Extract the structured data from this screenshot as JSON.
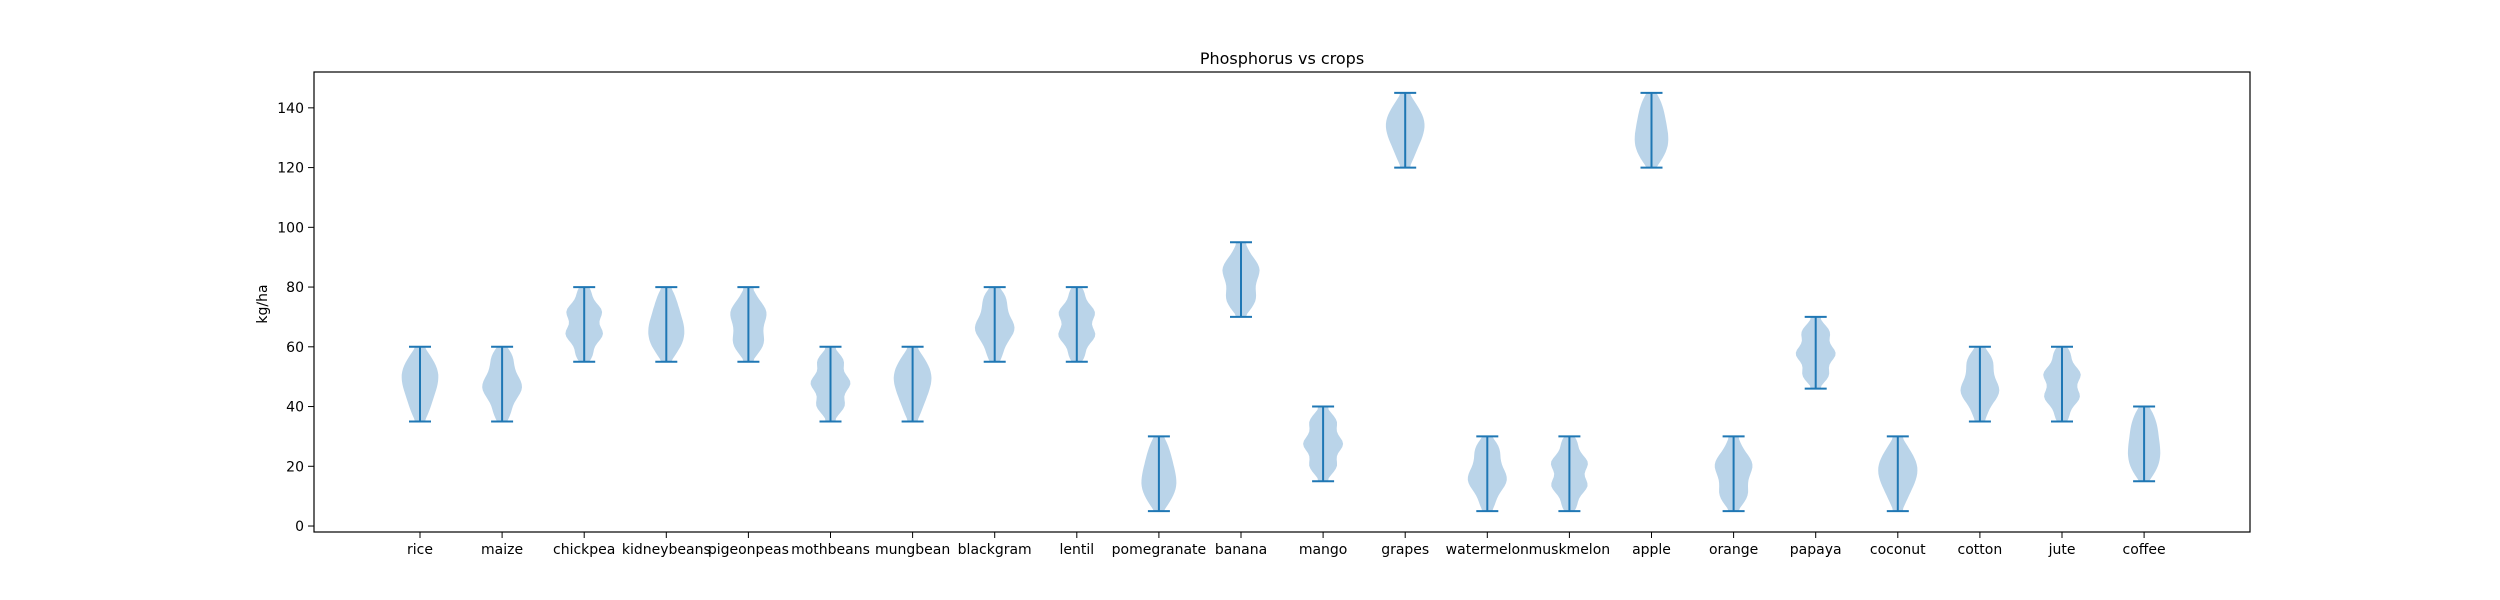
{
  "chart_data": {
    "type": "violin",
    "title": "Phosphorus vs crops",
    "xlabel": "",
    "ylabel": "kg/ha",
    "ylim": [
      -2,
      152
    ],
    "yticks": [
      0,
      20,
      40,
      60,
      80,
      100,
      120,
      140
    ],
    "grid": false,
    "colors": {
      "body": "#aecde5",
      "line": "#1f77b4"
    },
    "categories": [
      "rice",
      "maize",
      "chickpea",
      "kidneybeans",
      "pigeonpeas",
      "mothbeans",
      "mungbean",
      "blackgram",
      "lentil",
      "pomegranate",
      "banana",
      "mango",
      "grapes",
      "watermelon",
      "muskmelon",
      "apple",
      "orange",
      "papaya",
      "coconut",
      "cotton",
      "jute",
      "coffee"
    ],
    "series": [
      {
        "category": "rice",
        "min": 35,
        "max": 60
      },
      {
        "category": "maize",
        "min": 35,
        "max": 60
      },
      {
        "category": "chickpea",
        "min": 55,
        "max": 80
      },
      {
        "category": "kidneybeans",
        "min": 55,
        "max": 80
      },
      {
        "category": "pigeonpeas",
        "min": 55,
        "max": 80
      },
      {
        "category": "mothbeans",
        "min": 35,
        "max": 60
      },
      {
        "category": "mungbean",
        "min": 35,
        "max": 60
      },
      {
        "category": "blackgram",
        "min": 55,
        "max": 80
      },
      {
        "category": "lentil",
        "min": 55,
        "max": 80
      },
      {
        "category": "pomegranate",
        "min": 5,
        "max": 30
      },
      {
        "category": "banana",
        "min": 70,
        "max": 95
      },
      {
        "category": "mango",
        "min": 15,
        "max": 40
      },
      {
        "category": "grapes",
        "min": 120,
        "max": 145
      },
      {
        "category": "watermelon",
        "min": 5,
        "max": 30
      },
      {
        "category": "muskmelon",
        "min": 5,
        "max": 30
      },
      {
        "category": "apple",
        "min": 120,
        "max": 145
      },
      {
        "category": "orange",
        "min": 5,
        "max": 30
      },
      {
        "category": "papaya",
        "min": 46,
        "max": 70
      },
      {
        "category": "coconut",
        "min": 5,
        "max": 30
      },
      {
        "category": "cotton",
        "min": 35,
        "max": 60
      },
      {
        "category": "jute",
        "min": 35,
        "max": 60
      },
      {
        "category": "coffee",
        "min": 15,
        "max": 40
      }
    ]
  }
}
